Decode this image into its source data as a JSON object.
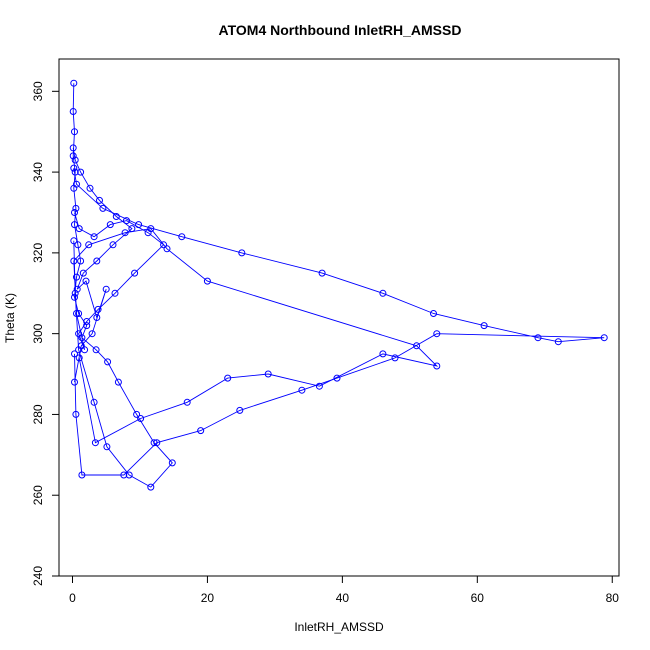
{
  "chart_data": {
    "type": "line",
    "title": "ATOM4 Northbound InletRH_AMSSD",
    "xlabel": "InletRH_AMSSD",
    "ylabel": "Theta (K)",
    "xlim": [
      -2,
      81
    ],
    "ylim": [
      240,
      368
    ],
    "x_ticks": [
      0,
      20,
      40,
      60,
      80
    ],
    "y_ticks": [
      240,
      260,
      280,
      300,
      320,
      340,
      360
    ],
    "grid": false,
    "legend": "none",
    "colors": {
      "series": "#0000ff",
      "axis": "#000000",
      "background": "#ffffff"
    },
    "series": [
      {
        "x": [
          0.2,
          0.1,
          0.3,
          0.1,
          0.4,
          0.2,
          0.5,
          0.3,
          0.8,
          1.2,
          0.6,
          0.3,
          0.9,
          2.1,
          1.4,
          3.5,
          5.2,
          6.8,
          9.5,
          12.1,
          14.8,
          11.6,
          8.4,
          5.1,
          3.2,
          0.9,
          0.4,
          0.2
        ],
        "y": [
          362,
          355,
          350,
          344,
          340,
          336,
          331,
          327,
          322,
          318,
          314,
          309,
          305,
          302,
          299,
          296,
          293,
          288,
          280,
          273,
          268,
          262,
          265,
          272,
          283,
          296,
          310,
          323
        ]
      },
      {
        "x": [
          0.2,
          0.6,
          4.5,
          9.8,
          16.2,
          25.1,
          37.0,
          46.0,
          53.5,
          61.0,
          69.0,
          72.0,
          78.8,
          54.0,
          47.8,
          39.2,
          34.0,
          24.8,
          19.0,
          12.5,
          7.6,
          1.4,
          0.5,
          0.3
        ],
        "y": [
          341,
          337,
          331,
          327,
          324,
          320,
          315,
          310,
          305,
          302,
          299,
          298,
          299,
          300,
          294,
          289,
          286,
          281,
          276,
          273,
          265,
          265,
          280,
          295
        ]
      },
      {
        "x": [
          0.3,
          1.0,
          3.2,
          5.6,
          8.0,
          11.2,
          13.5,
          9.2,
          6.3,
          3.8,
          2.1,
          0.9,
          1.8,
          0.6,
          0.2,
          2.4,
          7.8,
          11.6,
          14.0,
          20.0,
          51.0,
          54.0,
          46.0,
          36.6,
          29.0,
          23.0,
          17.0,
          10.1,
          3.4,
          1.0
        ],
        "y": [
          330,
          326,
          324,
          327,
          328,
          325,
          322,
          315,
          310,
          306,
          303,
          300,
          296,
          305,
          318,
          322,
          325,
          326,
          321,
          313,
          297,
          292,
          295,
          287,
          290,
          289,
          283,
          279,
          273,
          294
        ]
      },
      {
        "x": [
          0.1,
          0.4,
          1.2,
          2.6,
          4.0,
          6.5,
          8.8,
          6.0,
          3.6,
          1.6,
          0.7,
          2.0,
          3.6,
          5.0,
          2.9,
          1.3,
          0.3
        ],
        "y": [
          346,
          343,
          340,
          336,
          333,
          329,
          326,
          322,
          318,
          315,
          311,
          313,
          304,
          311,
          300,
          297,
          288
        ]
      }
    ]
  }
}
